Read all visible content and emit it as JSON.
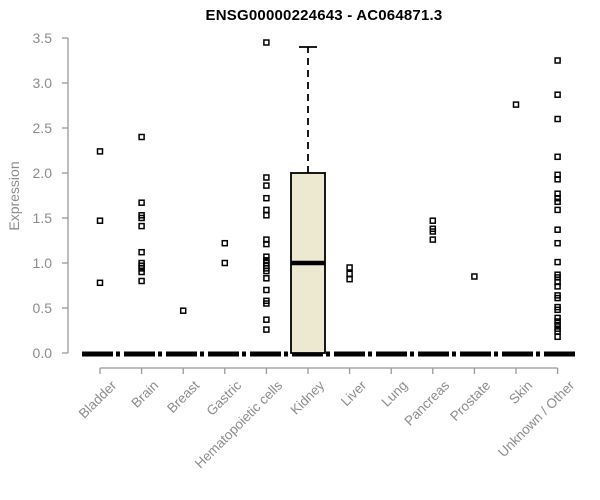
{
  "chart_data": {
    "type": "boxplot-scatter",
    "title": "ENSG00000224643 - AC064871.3",
    "xlabel": "",
    "ylabel": "Expression",
    "ylim": [
      0,
      3.5
    ],
    "yticks": [
      0.0,
      0.5,
      1.0,
      1.5,
      2.0,
      2.5,
      3.0,
      3.5
    ],
    "grid": false,
    "legend": "none",
    "point_marker": "open-square",
    "categories": [
      "Bladder",
      "Brain",
      "Breast",
      "Gastric",
      "Hematopoietic cells",
      "Kidney",
      "Liver",
      "Lung",
      "Pancreas",
      "Prostate",
      "Skin",
      "Unknown / Other"
    ],
    "zero_median": 0.0,
    "series": [
      {
        "category": "Bladder",
        "values": [
          2.24,
          1.47,
          0.78
        ]
      },
      {
        "category": "Brain",
        "values": [
          2.4,
          1.67,
          1.53,
          1.5,
          1.41,
          1.12,
          1.0,
          0.97,
          0.94,
          0.9,
          0.8
        ]
      },
      {
        "category": "Breast",
        "values": [
          0.47
        ]
      },
      {
        "category": "Gastric",
        "values": [
          1.22,
          1.0
        ]
      },
      {
        "category": "Hematopoietic cells",
        "values": [
          3.45,
          1.95,
          1.86,
          1.72,
          1.59,
          1.53,
          1.26,
          1.21,
          1.07,
          1.03,
          1.0,
          0.97,
          0.94,
          0.91,
          0.83,
          0.7,
          0.58,
          0.55,
          0.37,
          0.26
        ]
      },
      {
        "category": "Kidney",
        "values": []
      },
      {
        "category": "Liver",
        "values": [
          0.95,
          0.88,
          0.82
        ]
      },
      {
        "category": "Lung",
        "values": []
      },
      {
        "category": "Pancreas",
        "values": [
          1.47,
          1.38,
          1.35,
          1.26
        ]
      },
      {
        "category": "Prostate",
        "values": [
          0.85
        ]
      },
      {
        "category": "Skin",
        "values": [
          2.76
        ]
      },
      {
        "category": "Unknown / Other",
        "values": [
          3.25,
          2.87,
          2.6,
          2.18,
          1.98,
          1.93,
          1.77,
          1.72,
          1.68,
          1.59,
          1.37,
          1.22,
          1.01,
          0.87,
          0.84,
          0.79,
          0.74,
          0.64,
          0.61,
          0.51,
          0.48,
          0.39,
          0.35,
          0.31,
          0.27,
          0.24,
          0.18
        ]
      }
    ],
    "boxes": [
      {
        "category": "Kidney",
        "q1": 0.0,
        "median": 1.0,
        "q3": 2.0,
        "whisker_low": 0.0,
        "whisker_high": 3.4
      }
    ],
    "colors": {
      "box_fill": "#ede8d0",
      "box_border": "#000000",
      "point": "#000000",
      "axis": "#999999",
      "tick_label": "#8c8c8c",
      "title": "#000000",
      "background": "#ffffff"
    }
  }
}
